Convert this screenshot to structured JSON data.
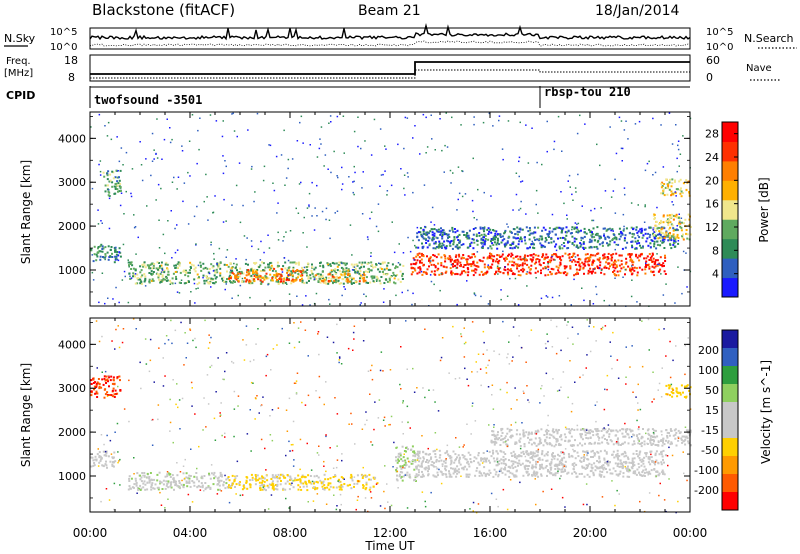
{
  "header": {
    "station": "Blackstone (fitACF)",
    "beam": "Beam 21",
    "date": "18/Jan/2014"
  },
  "nsky_panel": {
    "left_label": "N.Sky",
    "right_label": "N.Search",
    "left_ticks": [
      "10^5",
      "10^0"
    ],
    "right_ticks": [
      "10^5",
      "10^0"
    ]
  },
  "freq_panel": {
    "left_label_line1": "Freq.",
    "left_label_line2": "[MHz]",
    "left_ticks": [
      "18",
      "8"
    ],
    "right_label": "Nave",
    "right_ticks": [
      "60",
      "0"
    ]
  },
  "cpid_panel": {
    "label": "CPID",
    "modes": [
      {
        "name": "twofsound -3501",
        "start_hour": 0
      },
      {
        "name": "rbsp-tou 210",
        "start_hour": 18
      }
    ]
  },
  "colors": {
    "power_scale": [
      "#1a1aff",
      "#2f5fbf",
      "#2e8b57",
      "#5faa5f",
      "#f0e68c",
      "#ffb000",
      "#ff7f00",
      "#ff3000",
      "#ff0000"
    ],
    "velocity_scale": [
      "#ff0000",
      "#ff5a00",
      "#ff9a00",
      "#ffd000",
      "#c8c8c8",
      "#c8c8c8",
      "#8fcf5f",
      "#2e9e3e",
      "#3060c0",
      "#1a1aa0"
    ]
  },
  "chart_data": [
    {
      "type": "heatmap",
      "title": "",
      "xlabel": "Time UT",
      "ylabel": "Slant Range [km]",
      "x_ticks": [
        "00:00",
        "04:00",
        "08:00",
        "12:00",
        "16:00",
        "20:00",
        "00:00"
      ],
      "xlim": [
        0,
        24
      ],
      "ylim": [
        180,
        4600
      ],
      "y_ticks": [
        1000,
        2000,
        3000,
        4000
      ],
      "colorbar_label": "Power [dB]",
      "colorbar_ticks": [
        4,
        8,
        12,
        16,
        20,
        24,
        28
      ],
      "color_range": [
        0,
        30
      ],
      "features": [
        {
          "hours": [
            0.0,
            1.2
          ],
          "range": [
            1200,
            1600
          ],
          "level": 8
        },
        {
          "hours": [
            0.5,
            1.2
          ],
          "range": [
            2700,
            3300
          ],
          "level": 10
        },
        {
          "hours": [
            1.5,
            12.5
          ],
          "range": [
            700,
            1200
          ],
          "level": 12
        },
        {
          "hours": [
            5.5,
            8.5
          ],
          "range": [
            750,
            1050
          ],
          "level": 22
        },
        {
          "hours": [
            9.0,
            11.0
          ],
          "range": [
            750,
            950
          ],
          "level": 20
        },
        {
          "hours": [
            12.8,
            23.0
          ],
          "range": [
            900,
            1400
          ],
          "level": 26
        },
        {
          "hours": [
            13.0,
            23.5
          ],
          "range": [
            1500,
            2000
          ],
          "level": 6
        },
        {
          "hours": [
            22.8,
            24.0
          ],
          "range": [
            2700,
            3100
          ],
          "level": 16
        },
        {
          "hours": [
            22.5,
            24.0
          ],
          "range": [
            1700,
            2300
          ],
          "level": 16
        }
      ]
    },
    {
      "type": "heatmap",
      "title": "",
      "xlabel": "Time UT",
      "ylabel": "Slant Range [km]",
      "x_ticks": [
        "00:00",
        "04:00",
        "08:00",
        "12:00",
        "16:00",
        "20:00",
        "00:00"
      ],
      "xlim": [
        0,
        24
      ],
      "ylim": [
        180,
        4600
      ],
      "y_ticks": [
        1000,
        2000,
        3000,
        4000
      ],
      "colorbar_label": "Velocity [m s^-1]",
      "colorbar_ticks": [
        200,
        100,
        50,
        15,
        -15,
        -50,
        -100,
        -200
      ],
      "color_range": [
        -250,
        250
      ],
      "features": [
        {
          "hours": [
            0.0,
            1.2
          ],
          "range": [
            2800,
            3300
          ],
          "value": -200
        },
        {
          "hours": [
            0.0,
            1.0
          ],
          "range": [
            1200,
            1600
          ],
          "value": 0
        },
        {
          "hours": [
            1.5,
            5.5
          ],
          "range": [
            700,
            1100
          ],
          "value": 30
        },
        {
          "hours": [
            5.5,
            11.5
          ],
          "range": [
            700,
            1050
          ],
          "value": -60
        },
        {
          "hours": [
            12.2,
            13.0
          ],
          "range": [
            900,
            1700
          ],
          "value": 40
        },
        {
          "hours": [
            13.0,
            23.0
          ],
          "range": [
            1000,
            1600
          ],
          "value": 0
        },
        {
          "hours": [
            16.0,
            24.0
          ],
          "range": [
            1700,
            2100
          ],
          "value": 0
        },
        {
          "hours": [
            23.0,
            24.0
          ],
          "range": [
            2800,
            3100
          ],
          "value": -80
        }
      ]
    }
  ]
}
